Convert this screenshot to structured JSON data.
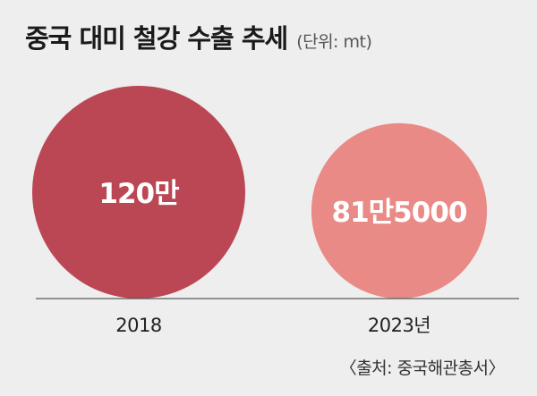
{
  "header": {
    "title": "중국 대미 철강 수출 추세",
    "unit": "(단위: mt)"
  },
  "source": "〈출처: 중국해관총서〉",
  "colors": {
    "background": "#eeeeee",
    "bubble_2018": "#bb4755",
    "bubble_2023": "#e98a86",
    "baseline": "#5a5a5a",
    "bubble_text": "#ffffff"
  },
  "chart_data": {
    "type": "bubble",
    "categories": [
      "2018",
      "2023년"
    ],
    "values": [
      1200000,
      815000
    ],
    "data_labels": [
      "120만",
      "81만5000"
    ],
    "unit": "mt",
    "xlabel": "",
    "ylabel": "",
    "grid": false,
    "legend": "none"
  }
}
